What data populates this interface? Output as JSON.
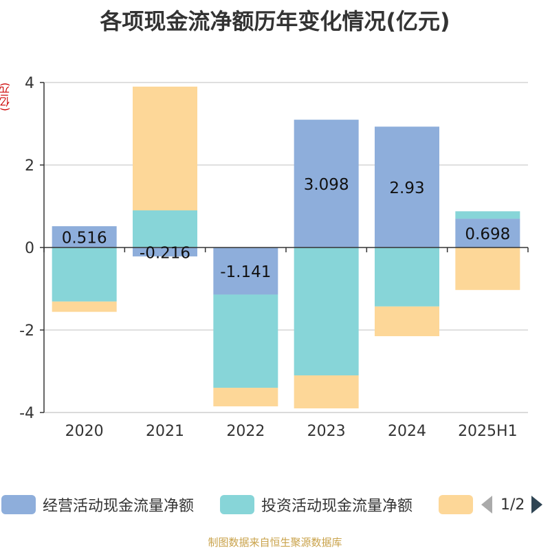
{
  "chart_data": {
    "type": "bar",
    "stacked": true,
    "title": "各项现金流净额历年变化情况(亿元)",
    "ylabel": "(亿元)",
    "categories": [
      "2020",
      "2021",
      "2022",
      "2023",
      "2024",
      "2025H1"
    ],
    "ylim": [
      -4,
      4
    ],
    "yticks": [
      4,
      2,
      0,
      -2,
      -4
    ],
    "grid": true,
    "legend_position": "bottom",
    "series": [
      {
        "name": "经营活动现金流量净额",
        "color": "#8eaedb",
        "values": [
          0.516,
          -0.216,
          -1.141,
          3.098,
          2.93,
          0.698
        ]
      },
      {
        "name": "投资活动现金流量净额",
        "color": "#87d5d8",
        "values": [
          -1.31,
          0.9,
          -2.26,
          -3.1,
          -1.43,
          0.18
        ]
      },
      {
        "name": "",
        "color": "#fdd798",
        "values": [
          -0.25,
          3.0,
          -0.45,
          -0.8,
          -0.72,
          -1.03
        ]
      }
    ],
    "data_labels": [
      "0.516",
      "-0.216",
      "-1.141",
      "3.098",
      "2.93",
      "0.698"
    ]
  },
  "legend": {
    "page": "1/2"
  },
  "footer": "制图数据来自恒生聚源数据库"
}
